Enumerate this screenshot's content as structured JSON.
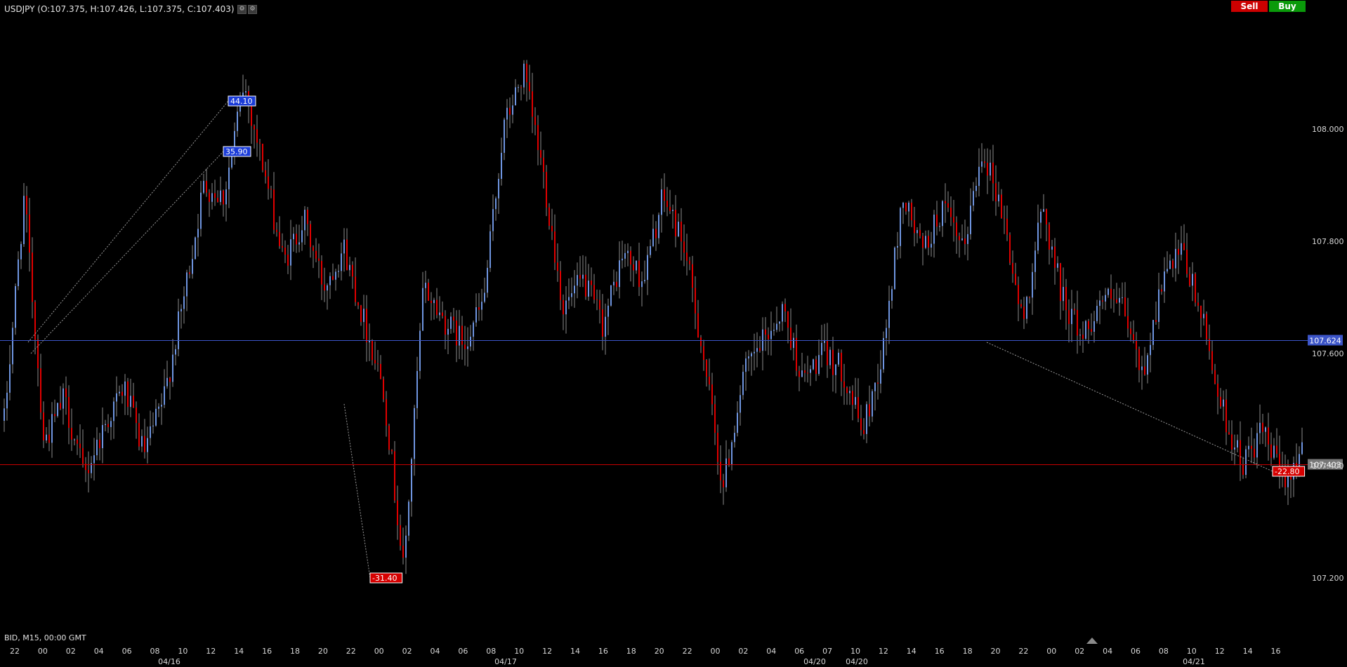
{
  "header": {
    "ohlc_text": "USDJPY (O:107.375, H:107.426, L:107.375, C:107.403)",
    "sell_label": "Sell",
    "buy_label": "Buy"
  },
  "footer": {
    "info": "BID, M15, 00:00 GMT"
  },
  "colors": {
    "background": "#000000",
    "bull_candle": "#6f95e0",
    "bear_candle": "#e00000",
    "wick": "#8c8c8c",
    "blue_line": "#3c55c8",
    "red_line": "#c80000",
    "axis_text": "#d8d8d8"
  },
  "chart_data": {
    "type": "candlestick",
    "symbol": "USDJPY",
    "timeframe": "M15",
    "ylim": [
      107.13,
      108.2
    ],
    "y_ticks": [
      {
        "value": 107.2,
        "label": "107.200"
      },
      {
        "value": 107.4,
        "label": "107.400"
      },
      {
        "value": 107.6,
        "label": "107.600"
      },
      {
        "value": 107.8,
        "label": "107.800"
      },
      {
        "value": 108.0,
        "label": "108.000"
      }
    ],
    "x_ticks": [
      "22",
      "00",
      "02",
      "04",
      "06",
      "08",
      "10",
      "12",
      "14",
      "16",
      "18",
      "20",
      "22",
      "00",
      "02",
      "04",
      "06",
      "08",
      "10",
      "12",
      "14",
      "16",
      "18",
      "20",
      "22",
      "00",
      "02",
      "04",
      "06",
      "07",
      "10",
      "12",
      "14",
      "16",
      "18",
      "20",
      "22",
      "00",
      "02",
      "04",
      "06",
      "08",
      "10",
      "12",
      "14",
      "16"
    ],
    "date_labels": [
      "04/16",
      "04/17",
      "04/20",
      "04/20",
      "04/21"
    ],
    "horizontal_lines": [
      {
        "price": 107.624,
        "label": "107.624",
        "color": "blue"
      },
      {
        "price": 107.403,
        "label": "107.403",
        "color": "red"
      }
    ],
    "annotations": [
      {
        "text": "44.10",
        "kind": "gain",
        "from": 107.62,
        "to": 108.05
      },
      {
        "text": "35.90",
        "kind": "gain",
        "from": 107.6,
        "to": 107.96
      },
      {
        "text": "-31.40",
        "kind": "loss",
        "from": 107.51,
        "to": 107.2
      },
      {
        "text": "-22.80",
        "kind": "loss",
        "from": 107.62,
        "to": 107.39
      }
    ],
    "price_path": [
      107.48,
      107.88,
      107.44,
      107.52,
      107.38,
      107.47,
      107.54,
      107.42,
      107.52,
      107.7,
      107.9,
      107.88,
      108.08,
      107.93,
      107.76,
      107.84,
      107.72,
      107.79,
      107.66,
      107.54,
      107.21,
      107.72,
      107.66,
      107.62,
      107.69,
      108.0,
      108.1,
      107.92,
      107.68,
      107.73,
      107.65,
      107.78,
      107.73,
      107.88,
      107.8,
      107.6,
      107.36,
      107.56,
      107.62,
      107.68,
      107.55,
      107.6,
      107.57,
      107.46,
      107.6,
      107.88,
      107.78,
      107.86,
      107.78,
      107.97,
      107.85,
      107.65,
      107.86,
      107.7,
      107.63,
      107.7,
      107.68,
      107.56,
      107.73,
      107.78,
      107.66,
      107.5,
      107.4,
      107.46,
      107.38,
      107.42
    ]
  }
}
